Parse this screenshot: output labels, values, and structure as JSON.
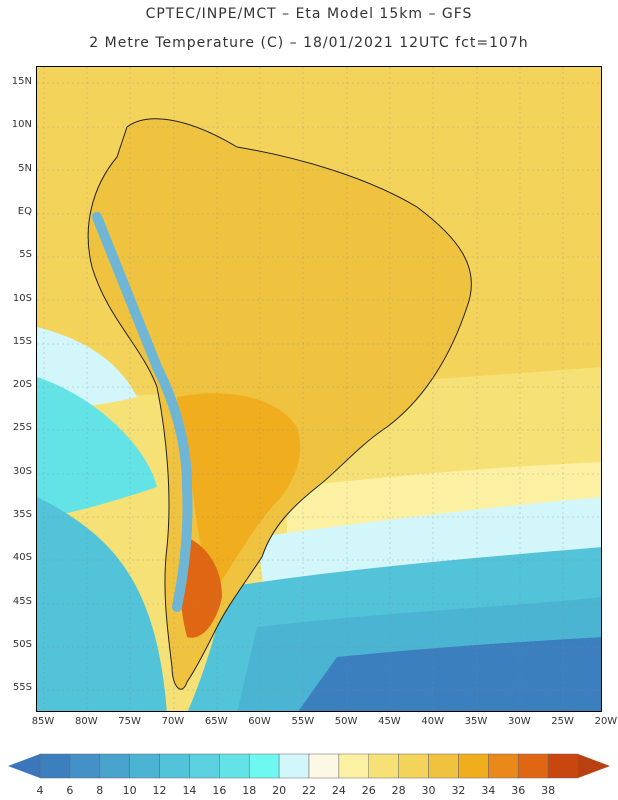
{
  "header": {
    "title_line1": "CPTEC/INPE/MCT –  Eta Model 15km – GFS",
    "title_line2": "2 Metre Temperature (C) – 18/01/2021 12UTC fct=107h"
  },
  "map": {
    "lat_labels": [
      "15N",
      "10N",
      "5N",
      "EQ",
      "5S",
      "10S",
      "15S",
      "20S",
      "25S",
      "30S",
      "35S",
      "40S",
      "45S",
      "50S",
      "55S"
    ],
    "lon_labels": [
      "85W",
      "80W",
      "75W",
      "70W",
      "65W",
      "60W",
      "55W",
      "50W",
      "45W",
      "40W",
      "35W",
      "30W",
      "25W",
      "20W"
    ]
  },
  "colorbar": {
    "labels": [
      "4",
      "6",
      "8",
      "10",
      "12",
      "14",
      "16",
      "18",
      "20",
      "22",
      "24",
      "26",
      "28",
      "30",
      "32",
      "34",
      "36",
      "38"
    ],
    "colors": [
      "#3b7fbf",
      "#4391c6",
      "#47a3cc",
      "#4bb4d3",
      "#52c3d9",
      "#5bd1df",
      "#63e3e6",
      "#6ff7f1",
      "#d2f6f9",
      "#fdf8e3",
      "#fcf1a3",
      "#f6e177",
      "#f4d35b",
      "#efc340",
      "#f0ad1e",
      "#e8891a",
      "#df6713",
      "#c9470f"
    ],
    "low_color": "#3b75ba",
    "high_color": "#b9400f"
  },
  "colors": {
    "ocean_tropical": "#f4d35b",
    "ocean_warm": "#f6e177",
    "ocean_mild": "#fcf1a3",
    "ocean_cool": "#d2f6f9",
    "ocean_cold1": "#63e3e6",
    "ocean_cold2": "#52c3d9",
    "ocean_cold3": "#4bb4d3",
    "ocean_cold4": "#3b7fbf",
    "land_hot": "#efc340",
    "land_hotter": "#f0ad1e",
    "land_hottest": "#df6713",
    "andes": "#6fb6d6"
  }
}
